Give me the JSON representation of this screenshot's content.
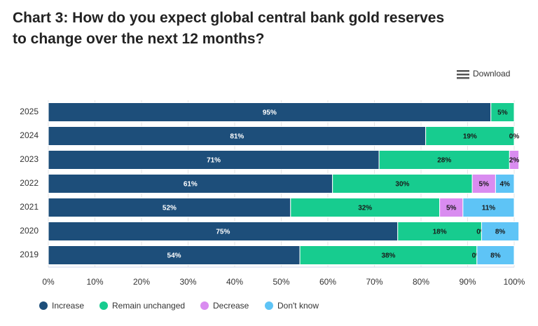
{
  "chart_data": {
    "type": "stacked-bar-horizontal",
    "title": "Chart 3: How do you expect global central bank gold reserves to change over the next 12 months?",
    "download": "Download",
    "categories": [
      "2025",
      "2024",
      "2023",
      "2022",
      "2021",
      "2020",
      "2019"
    ],
    "series": [
      {
        "name": "Increase",
        "color": "#1d4e7a",
        "values": [
          95,
          81,
          71,
          61,
          52,
          75,
          54
        ],
        "value_labels": [
          "95%",
          "81%",
          "71%",
          "61%",
          "52%",
          "75%",
          "54%"
        ]
      },
      {
        "name": "Remain unchanged",
        "color": "#17cc8f",
        "values": [
          5,
          19,
          28,
          30,
          32,
          18,
          38
        ],
        "value_labels": [
          "5%",
          "19%",
          "28%",
          "30%",
          "32%",
          "18%",
          "38%"
        ]
      },
      {
        "name": "Decrease",
        "color": "#d98cf0",
        "values": [
          0,
          0,
          2,
          5,
          5,
          0,
          0
        ],
        "value_labels": [
          null,
          "0%",
          "2%",
          "5%",
          "5%",
          "0%",
          "0%"
        ]
      },
      {
        "name": "Don't know",
        "color": "#5ec4f6",
        "values": [
          0,
          0,
          0,
          4,
          11,
          8,
          8
        ],
        "value_labels": [
          null,
          null,
          null,
          "4%",
          "11%",
          "8%",
          "8%"
        ]
      }
    ],
    "xlim": [
      0,
      100
    ],
    "xticks": [
      {
        "value": 0,
        "label": "0%"
      },
      {
        "value": 10,
        "label": "10%"
      },
      {
        "value": 20,
        "label": "20%"
      },
      {
        "value": 30,
        "label": "30%"
      },
      {
        "value": 40,
        "label": "40%"
      },
      {
        "value": 50,
        "label": "50%"
      },
      {
        "value": 60,
        "label": "60%"
      },
      {
        "value": 70,
        "label": "70%"
      },
      {
        "value": 80,
        "label": "80%"
      },
      {
        "value": 90,
        "label": "90%"
      },
      {
        "value": 100,
        "label": "100%"
      }
    ],
    "legend": "bottom-left"
  }
}
